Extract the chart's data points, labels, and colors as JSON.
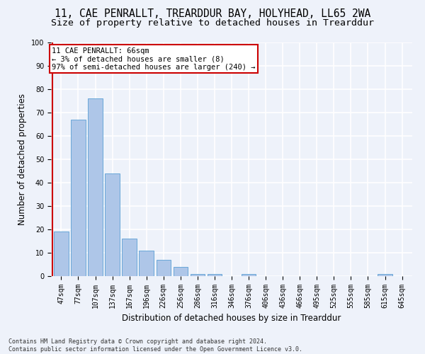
{
  "title1": "11, CAE PENRALLT, TREARDDUR BAY, HOLYHEAD, LL65 2WA",
  "title2": "Size of property relative to detached houses in Trearddur",
  "xlabel": "Distribution of detached houses by size in Trearddur",
  "ylabel": "Number of detached properties",
  "footnote": "Contains HM Land Registry data © Crown copyright and database right 2024.\nContains public sector information licensed under the Open Government Licence v3.0.",
  "bin_labels": [
    "47sqm",
    "77sqm",
    "107sqm",
    "137sqm",
    "167sqm",
    "196sqm",
    "226sqm",
    "256sqm",
    "286sqm",
    "316sqm",
    "346sqm",
    "376sqm",
    "406sqm",
    "436sqm",
    "466sqm",
    "495sqm",
    "525sqm",
    "555sqm",
    "585sqm",
    "615sqm",
    "645sqm"
  ],
  "bar_values": [
    19,
    67,
    76,
    44,
    16,
    11,
    7,
    4,
    1,
    1,
    0,
    1,
    0,
    0,
    0,
    0,
    0,
    0,
    0,
    1,
    0
  ],
  "bar_color": "#aec6e8",
  "bar_edgecolor": "#5a9fd4",
  "annotation_title": "11 CAE PENRALLT: 66sqm",
  "annotation_line1": "← 3% of detached houses are smaller (8)",
  "annotation_line2": "97% of semi-detached houses are larger (240) →",
  "annotation_box_color": "#ffffff",
  "annotation_box_edgecolor": "#cc0000",
  "marker_color": "#cc0000",
  "ylim": [
    0,
    100
  ],
  "yticks": [
    0,
    10,
    20,
    30,
    40,
    50,
    60,
    70,
    80,
    90,
    100
  ],
  "background_color": "#eef2fa",
  "grid_color": "#ffffff",
  "title1_fontsize": 10.5,
  "title2_fontsize": 9.5,
  "axis_label_fontsize": 8.5,
  "tick_fontsize": 7,
  "annotation_fontsize": 7.5,
  "footnote_fontsize": 6
}
